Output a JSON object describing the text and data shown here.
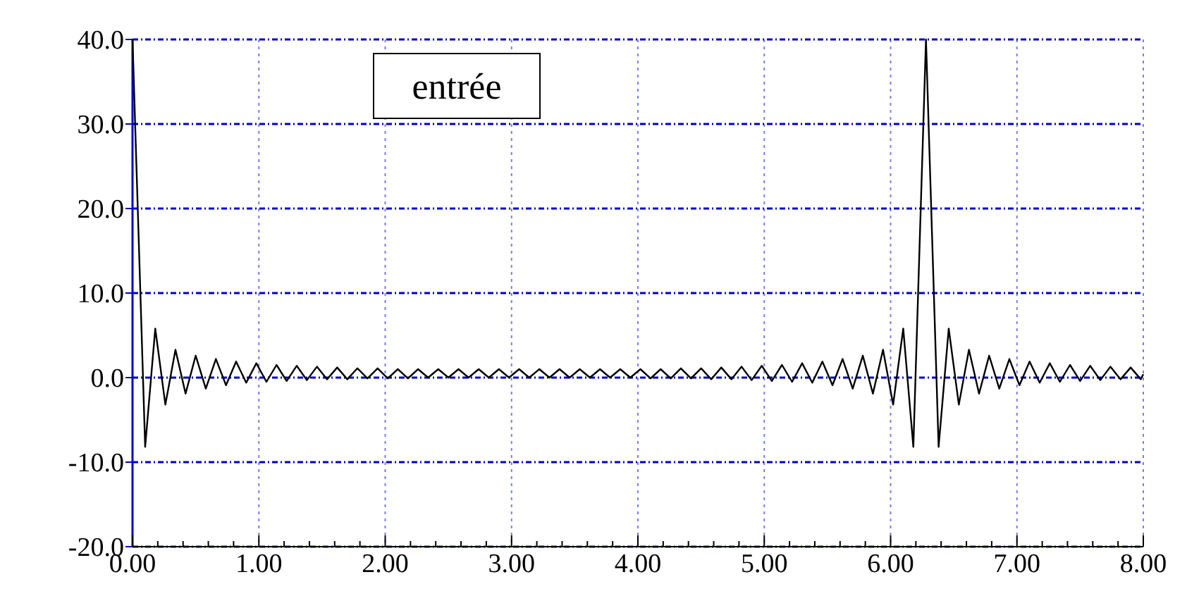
{
  "chart_data": {
    "type": "line",
    "title": "entrée",
    "x": [
      0,
      0.1,
      0.18,
      0.26,
      0.34,
      0.42,
      0.5,
      0.58,
      0.66,
      0.74,
      0.82,
      0.9,
      0.98,
      1.06,
      1.14,
      1.22,
      1.3,
      1.38,
      1.46,
      1.54,
      1.62,
      1.7,
      1.78,
      1.86,
      1.94,
      2.02,
      2.1,
      2.18,
      2.26,
      2.34,
      2.42,
      2.5,
      2.58,
      2.66,
      2.74,
      2.82,
      2.9,
      2.98,
      3.06,
      3.14,
      3.22,
      3.3,
      3.38,
      3.46,
      3.54,
      3.62,
      3.7,
      3.78,
      3.86,
      3.94,
      4.02,
      4.1,
      4.18,
      4.26,
      4.34,
      4.42,
      4.5,
      4.58,
      4.66,
      4.74,
      4.82,
      4.9,
      4.98,
      5.06,
      5.14,
      5.22,
      5.3,
      5.38,
      5.46,
      5.54,
      5.62,
      5.7,
      5.78,
      5.86,
      5.94,
      6.02,
      6.1,
      6.18,
      6.28,
      6.38,
      6.46,
      6.54,
      6.62,
      6.7,
      6.78,
      6.86,
      6.94,
      7.02,
      7.1,
      7.18,
      7.26,
      7.34,
      7.42,
      7.5,
      7.58,
      7.66,
      7.74,
      7.82,
      7.9,
      7.98,
      8.0
    ],
    "series": [
      {
        "color": "#000000",
        "values": [
          40,
          -8.2,
          5.8,
          -3.2,
          3.3,
          -1.9,
          2.6,
          -1.3,
          2.2,
          -0.9,
          1.9,
          -0.6,
          1.7,
          -0.5,
          1.5,
          -0.4,
          1.4,
          -0.3,
          1.3,
          -0.2,
          1.2,
          -0.2,
          1.1,
          -0.1,
          1.1,
          -0.1,
          1.0,
          -0.1,
          1.0,
          0,
          1.0,
          0,
          1.0,
          0,
          1.0,
          0,
          1.0,
          0,
          1.0,
          0,
          1.0,
          0,
          1.0,
          0,
          1.0,
          0,
          1.0,
          0,
          1.0,
          0,
          1.0,
          -0.1,
          1.0,
          -0.1,
          1.1,
          -0.1,
          1.1,
          -0.2,
          1.2,
          -0.2,
          1.3,
          -0.3,
          1.4,
          -0.4,
          1.5,
          -0.5,
          1.7,
          -0.6,
          1.9,
          -0.9,
          2.2,
          -1.3,
          2.6,
          -1.9,
          3.3,
          -3.2,
          5.8,
          -8.2,
          40,
          -8.2,
          5.8,
          -3.2,
          3.3,
          -1.9,
          2.6,
          -1.3,
          2.2,
          -0.9,
          1.9,
          -0.6,
          1.7,
          -0.5,
          1.5,
          -0.4,
          1.4,
          -0.3,
          1.3,
          -0.2,
          1.2,
          -0.2,
          0.4
        ]
      }
    ],
    "xlim": [
      0,
      8
    ],
    "ylim": [
      -20,
      40
    ],
    "xticks": [
      {
        "value": 0,
        "label": "0.00"
      },
      {
        "value": 0.2,
        "label": null
      },
      {
        "value": 0.4,
        "label": null
      },
      {
        "value": 0.6,
        "label": null
      },
      {
        "value": 0.8,
        "label": null
      },
      {
        "value": 1,
        "label": "1.00"
      },
      {
        "value": 1.2,
        "label": null
      },
      {
        "value": 1.4,
        "label": null
      },
      {
        "value": 1.6,
        "label": null
      },
      {
        "value": 1.8,
        "label": null
      },
      {
        "value": 2,
        "label": "2.00"
      },
      {
        "value": 2.2,
        "label": null
      },
      {
        "value": 2.4,
        "label": null
      },
      {
        "value": 2.6,
        "label": null
      },
      {
        "value": 2.8,
        "label": null
      },
      {
        "value": 3,
        "label": "3.00"
      },
      {
        "value": 3.2,
        "label": null
      },
      {
        "value": 3.4,
        "label": null
      },
      {
        "value": 3.6,
        "label": null
      },
      {
        "value": 3.8,
        "label": null
      },
      {
        "value": 4,
        "label": "4.00"
      },
      {
        "value": 4.2,
        "label": null
      },
      {
        "value": 4.4,
        "label": null
      },
      {
        "value": 4.6,
        "label": null
      },
      {
        "value": 4.8,
        "label": null
      },
      {
        "value": 5,
        "label": "5.00"
      },
      {
        "value": 5.2,
        "label": null
      },
      {
        "value": 5.4,
        "label": null
      },
      {
        "value": 5.6,
        "label": null
      },
      {
        "value": 5.8,
        "label": null
      },
      {
        "value": 6,
        "label": "6.00"
      },
      {
        "value": 6.2,
        "label": null
      },
      {
        "value": 6.4,
        "label": null
      },
      {
        "value": 6.6,
        "label": null
      },
      {
        "value": 6.8,
        "label": null
      },
      {
        "value": 7,
        "label": "7.00"
      },
      {
        "value": 7.2,
        "label": null
      },
      {
        "value": 7.4,
        "label": null
      },
      {
        "value": 7.6,
        "label": null
      },
      {
        "value": 7.8,
        "label": null
      },
      {
        "value": 8,
        "label": "8.00"
      }
    ],
    "yticks": [
      {
        "value": -20,
        "label": "-20.0"
      },
      {
        "value": -10,
        "label": "-10.0"
      },
      {
        "value": 0,
        "label": "0.0"
      },
      {
        "value": 10,
        "label": "10.0"
      },
      {
        "value": 20,
        "label": "20.0"
      },
      {
        "value": 30,
        "label": "30.0"
      },
      {
        "value": 40,
        "label": "40.0"
      }
    ],
    "grid": true,
    "marker": "none",
    "line_style": "solid"
  }
}
